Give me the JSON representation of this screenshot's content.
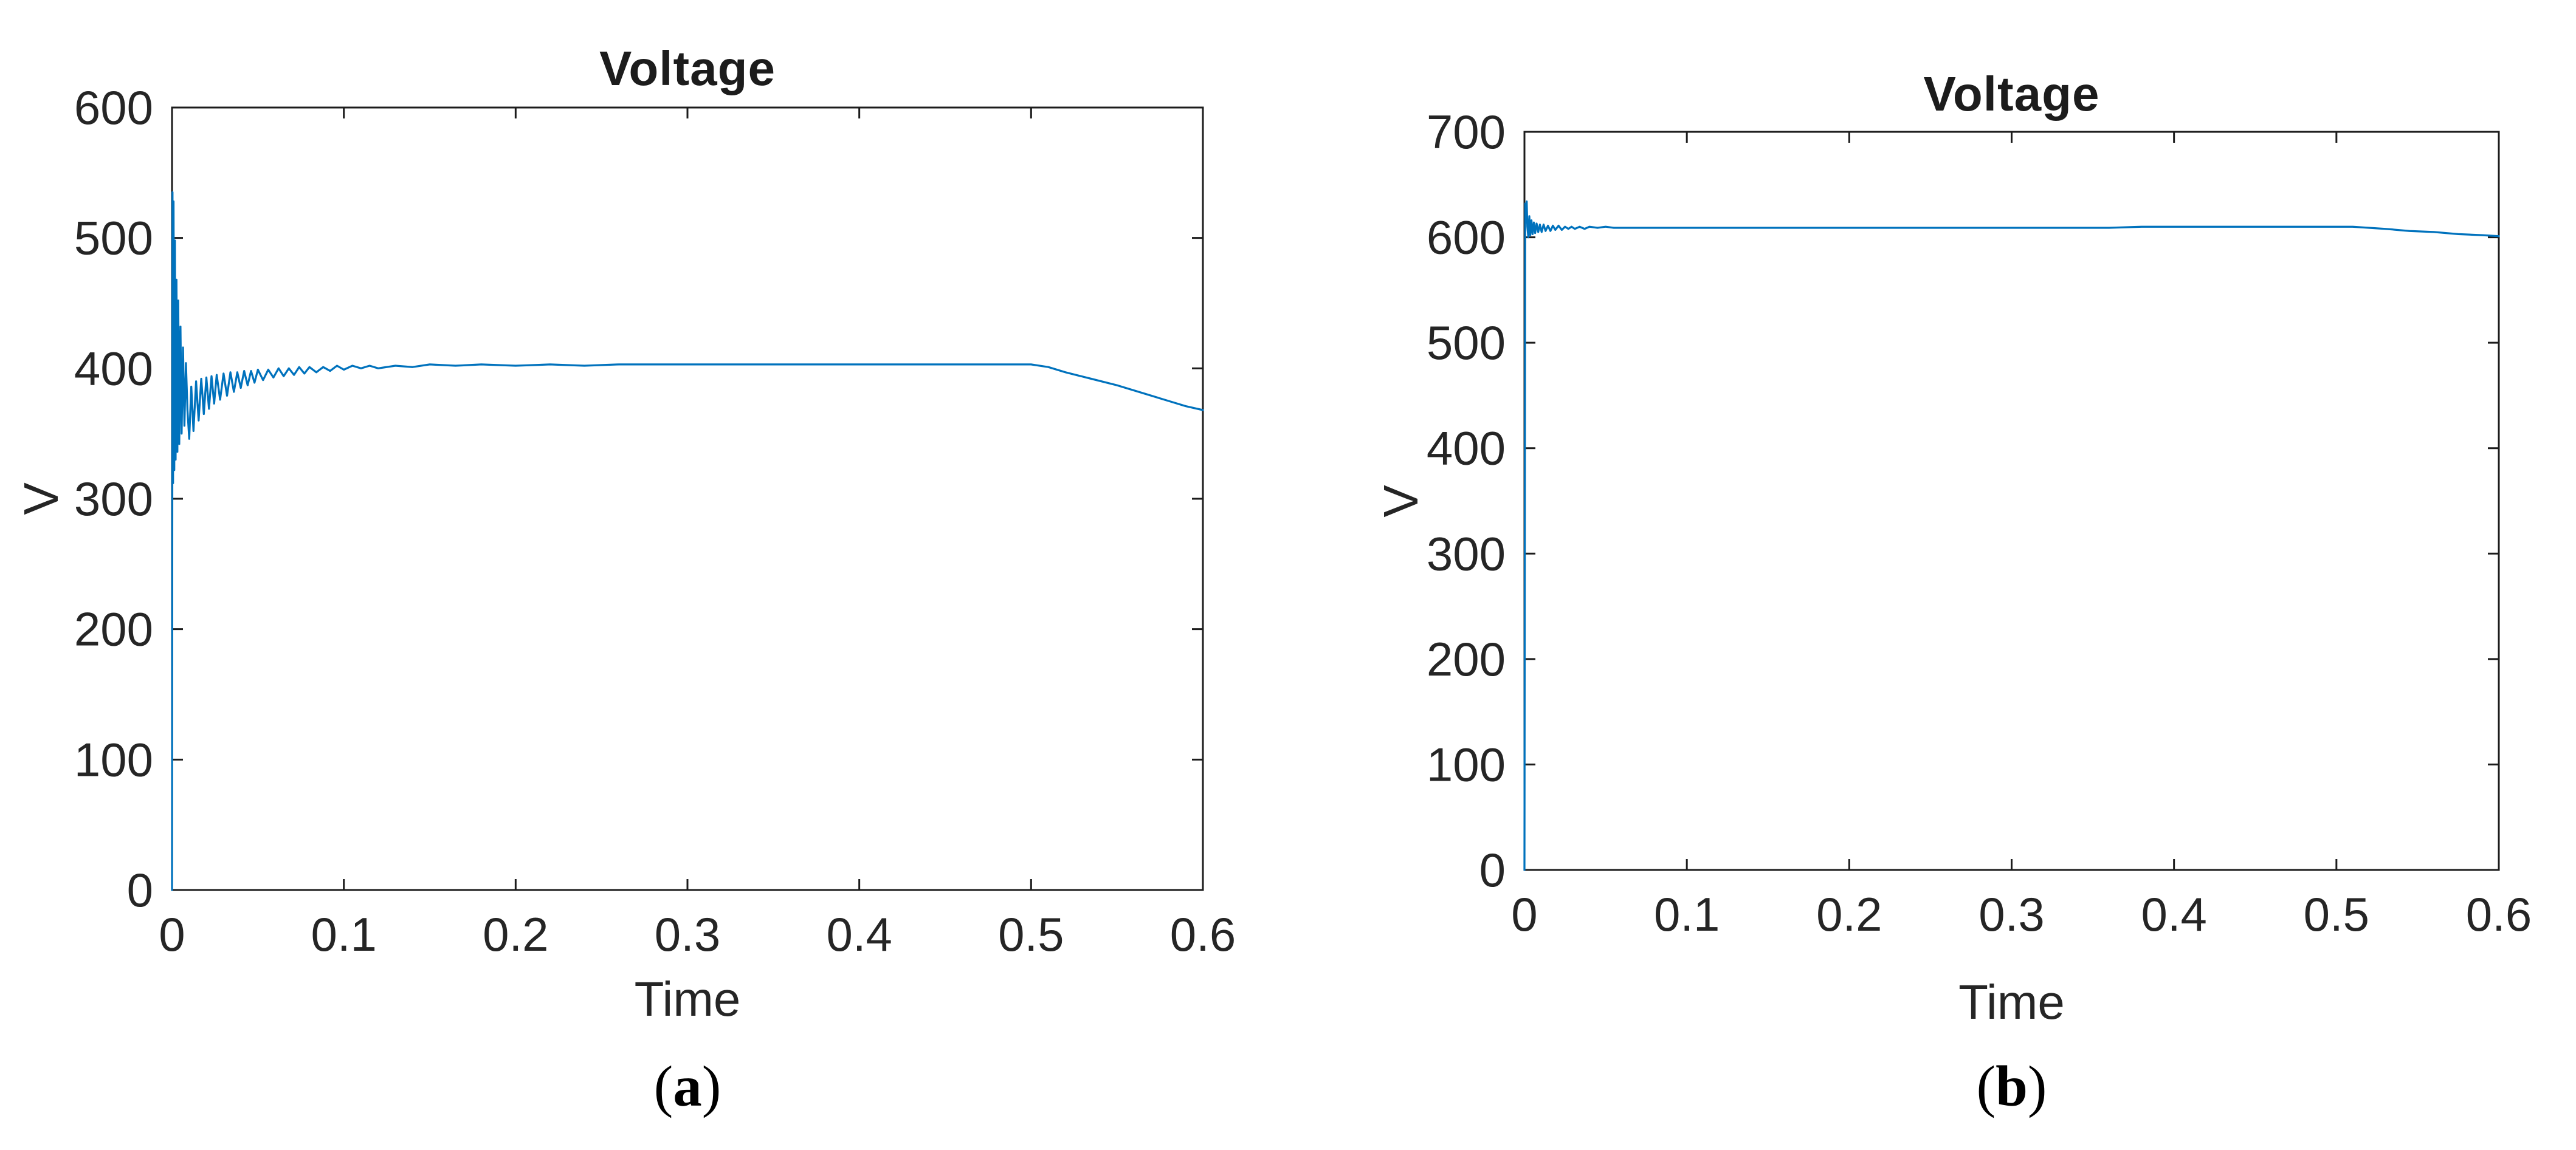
{
  "figure": {
    "background": "#ffffff",
    "axis_color": "#1c1c1c",
    "text_color": "#252525"
  },
  "chart_data": [
    {
      "type": "line",
      "id": "a",
      "title": "Voltage",
      "xlabel": "Time",
      "ylabel": "V",
      "caption": {
        "open": "(",
        "letter": "a",
        "close": ")"
      },
      "xlim": [
        0,
        0.6
      ],
      "ylim": [
        0,
        600
      ],
      "x_ticks": [
        0,
        0.1,
        0.2,
        0.3,
        0.4,
        0.5,
        0.6
      ],
      "x_tick_labels": [
        "0",
        "0.1",
        "0.2",
        "0.3",
        "0.4",
        "0.5",
        "0.6"
      ],
      "y_ticks": [
        0,
        100,
        200,
        300,
        400,
        500,
        600
      ],
      "y_tick_labels": [
        "0",
        "100",
        "200",
        "300",
        "400",
        "500",
        "600"
      ],
      "grid": false,
      "box": true,
      "legend": null,
      "line_color": "#0072BD",
      "series": [
        {
          "name": "voltage",
          "points": [
            [
              0,
              0
            ],
            [
              0.0003,
              535
            ],
            [
              0.0006,
              312
            ],
            [
              0.0009,
              528
            ],
            [
              0.0013,
              322
            ],
            [
              0.0017,
              498
            ],
            [
              0.0021,
              330
            ],
            [
              0.0026,
              468
            ],
            [
              0.0031,
              336
            ],
            [
              0.0036,
              452
            ],
            [
              0.0042,
              342
            ],
            [
              0.0049,
              432
            ],
            [
              0.0056,
              350
            ],
            [
              0.0064,
              416
            ],
            [
              0.0072,
              356
            ],
            [
              0.0081,
              404
            ],
            [
              0.009,
              368
            ],
            [
              0.01,
              346
            ],
            [
              0.0112,
              386
            ],
            [
              0.0125,
              352
            ],
            [
              0.014,
              390
            ],
            [
              0.0155,
              360
            ],
            [
              0.017,
              392
            ],
            [
              0.0185,
              365
            ],
            [
              0.02,
              393
            ],
            [
              0.0215,
              369
            ],
            [
              0.023,
              394
            ],
            [
              0.0245,
              373
            ],
            [
              0.026,
              395
            ],
            [
              0.028,
              376
            ],
            [
              0.03,
              396
            ],
            [
              0.032,
              379
            ],
            [
              0.034,
              397
            ],
            [
              0.036,
              382
            ],
            [
              0.038,
              397
            ],
            [
              0.04,
              385
            ],
            [
              0.042,
              398
            ],
            [
              0.044,
              387
            ],
            [
              0.046,
              398
            ],
            [
              0.048,
              389
            ],
            [
              0.05,
              399
            ],
            [
              0.053,
              391
            ],
            [
              0.056,
              399
            ],
            [
              0.059,
              393
            ],
            [
              0.062,
              400
            ],
            [
              0.065,
              394
            ],
            [
              0.068,
              400
            ],
            [
              0.071,
              395
            ],
            [
              0.074,
              401
            ],
            [
              0.077,
              396
            ],
            [
              0.08,
              401
            ],
            [
              0.084,
              397
            ],
            [
              0.088,
              401
            ],
            [
              0.092,
              398
            ],
            [
              0.096,
              402
            ],
            [
              0.1,
              399
            ],
            [
              0.105,
              402
            ],
            [
              0.11,
              400
            ],
            [
              0.115,
              402
            ],
            [
              0.12,
              400
            ],
            [
              0.13,
              402
            ],
            [
              0.14,
              401
            ],
            [
              0.15,
              403
            ],
            [
              0.165,
              402
            ],
            [
              0.18,
              403
            ],
            [
              0.2,
              402
            ],
            [
              0.22,
              403
            ],
            [
              0.24,
              402
            ],
            [
              0.26,
              403
            ],
            [
              0.28,
              403
            ],
            [
              0.3,
              403
            ],
            [
              0.32,
              403
            ],
            [
              0.34,
              403
            ],
            [
              0.36,
              403
            ],
            [
              0.38,
              403
            ],
            [
              0.4,
              403
            ],
            [
              0.42,
              403
            ],
            [
              0.44,
              403
            ],
            [
              0.46,
              403
            ],
            [
              0.48,
              403
            ],
            [
              0.5,
              403
            ],
            [
              0.51,
              401
            ],
            [
              0.52,
              397
            ],
            [
              0.535,
              392
            ],
            [
              0.55,
              387
            ],
            [
              0.565,
              381
            ],
            [
              0.58,
              375
            ],
            [
              0.59,
              371
            ],
            [
              0.6,
              368
            ]
          ]
        }
      ]
    },
    {
      "type": "line",
      "id": "b",
      "title": "Voltage",
      "xlabel": "Time",
      "ylabel": "V",
      "caption": {
        "open": "(",
        "letter": "b",
        "close": ")"
      },
      "xlim": [
        0,
        0.6
      ],
      "ylim": [
        0,
        700
      ],
      "x_ticks": [
        0,
        0.1,
        0.2,
        0.3,
        0.4,
        0.5,
        0.6
      ],
      "x_tick_labels": [
        "0",
        "0.1",
        "0.2",
        "0.3",
        "0.4",
        "0.5",
        "0.6"
      ],
      "y_ticks": [
        0,
        100,
        200,
        300,
        400,
        500,
        600,
        700
      ],
      "y_tick_labels": [
        "0",
        "100",
        "200",
        "300",
        "400",
        "500",
        "600",
        "700"
      ],
      "grid": false,
      "box": true,
      "legend": null,
      "line_color": "#0072BD",
      "series": [
        {
          "name": "voltage",
          "points": [
            [
              0,
              0
            ],
            [
              0.0005,
              632
            ],
            [
              0.001,
              614
            ],
            [
              0.0014,
              634
            ],
            [
              0.0018,
              610
            ],
            [
              0.0024,
              600
            ],
            [
              0.003,
              620
            ],
            [
              0.0036,
              602
            ],
            [
              0.0043,
              616
            ],
            [
              0.005,
              603
            ],
            [
              0.0058,
              614
            ],
            [
              0.0066,
              604
            ],
            [
              0.0075,
              613
            ],
            [
              0.0085,
              605
            ],
            [
              0.0095,
              612
            ],
            [
              0.0106,
              605
            ],
            [
              0.0118,
              612
            ],
            [
              0.013,
              606
            ],
            [
              0.0145,
              611
            ],
            [
              0.016,
              606
            ],
            [
              0.0175,
              611
            ],
            [
              0.019,
              607
            ],
            [
              0.021,
              611
            ],
            [
              0.023,
              607
            ],
            [
              0.025,
              610
            ],
            [
              0.027,
              608
            ],
            [
              0.029,
              610
            ],
            [
              0.031,
              608
            ],
            [
              0.034,
              610
            ],
            [
              0.037,
              608
            ],
            [
              0.04,
              610
            ],
            [
              0.045,
              609
            ],
            [
              0.05,
              610
            ],
            [
              0.055,
              609
            ],
            [
              0.06,
              609
            ],
            [
              0.07,
              609
            ],
            [
              0.08,
              609
            ],
            [
              0.09,
              609
            ],
            [
              0.1,
              609
            ],
            [
              0.12,
              609
            ],
            [
              0.14,
              609
            ],
            [
              0.16,
              609
            ],
            [
              0.18,
              609
            ],
            [
              0.2,
              609
            ],
            [
              0.22,
              609
            ],
            [
              0.24,
              609
            ],
            [
              0.26,
              609
            ],
            [
              0.28,
              609
            ],
            [
              0.3,
              609
            ],
            [
              0.32,
              609
            ],
            [
              0.34,
              609
            ],
            [
              0.36,
              609
            ],
            [
              0.38,
              610
            ],
            [
              0.4,
              610
            ],
            [
              0.42,
              610
            ],
            [
              0.44,
              610
            ],
            [
              0.46,
              610
            ],
            [
              0.48,
              610
            ],
            [
              0.5,
              610
            ],
            [
              0.51,
              610
            ],
            [
              0.52,
              609
            ],
            [
              0.53,
              608
            ],
            [
              0.545,
              606
            ],
            [
              0.56,
              605
            ],
            [
              0.575,
              603
            ],
            [
              0.59,
              602
            ],
            [
              0.6,
              601
            ]
          ]
        }
      ]
    }
  ]
}
